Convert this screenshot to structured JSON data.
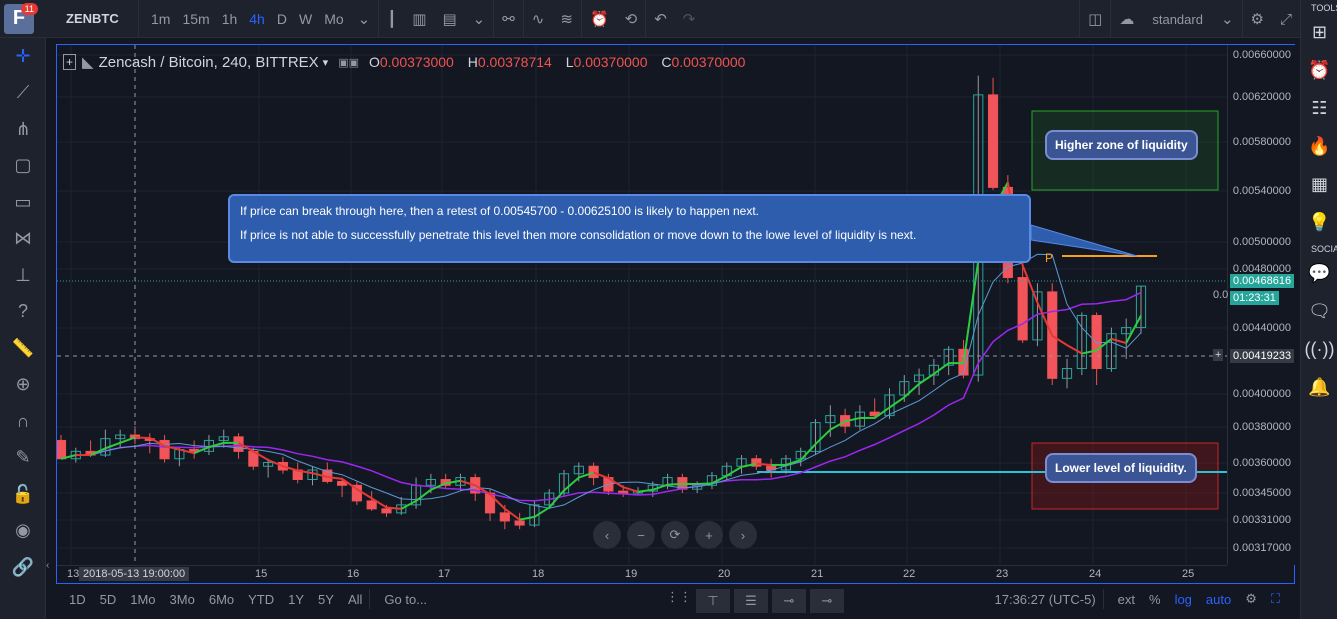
{
  "topbar": {
    "badge": "11",
    "symbol": "ZENBTC",
    "timeframes": [
      "1m",
      "15m",
      "1h",
      "4h",
      "D",
      "W",
      "Mo"
    ],
    "active_timeframe": "4h",
    "layout_label": "standard"
  },
  "legend": {
    "title": "Zencash / Bitcoin, 240, BITTREX",
    "o_label": "O",
    "o": "0.00373000",
    "h_label": "H",
    "h": "0.00378714",
    "l_label": "L",
    "l": "0.00370000",
    "c_label": "C",
    "c": "0.00370000"
  },
  "annotations": {
    "callout_line1": "If price can break through here, then a retest of 0.00545700 - 0.00625100 is likely to happen next.",
    "callout_line2": "If price is not able to successfully penetrate this level then more consolidation or move down to the lowe level of liquidity is next.",
    "higher_zone": "Higher zone of liquidity",
    "lower_zone": "Lower level of liquidity.",
    "p_marker": "P"
  },
  "price_axis": {
    "ticks": [
      "0.00660000",
      "0.00620000",
      "0.00580000",
      "0.00540000",
      "0.00500000",
      "0.00480000",
      "0.00440000",
      "0.00400000",
      "0.00380000",
      "0.00360000",
      "0.00345000",
      "0.00331000",
      "0.00317000"
    ],
    "current_price": "0.00468616",
    "countdown": "01:23:31",
    "crosshair_price": "0.00419233",
    "partial_tick": "0.0"
  },
  "time_axis": {
    "ticks": [
      "13",
      "15",
      "16",
      "17",
      "18",
      "19",
      "20",
      "21",
      "22",
      "23",
      "24",
      "25"
    ],
    "crosshair_time": "2018-05-13 19:00:00"
  },
  "bottombar": {
    "ranges": [
      "1D",
      "5D",
      "1Mo",
      "3Mo",
      "6Mo",
      "YTD",
      "1Y",
      "5Y",
      "All"
    ],
    "goto": "Go to...",
    "clock": "17:36:27 (UTC-5)",
    "ext": "ext",
    "percent": "%",
    "log": "log",
    "auto": "auto"
  },
  "rightpanel": {
    "tools_label": "TOOLS",
    "social_label": "SOCIAL"
  },
  "colors": {
    "up": "#26a69a",
    "down": "#ef5350",
    "accent": "#2962ff",
    "bg": "#131722"
  },
  "chart_data": {
    "type": "candlestick",
    "x": [
      "13",
      "15",
      "16",
      "17",
      "18",
      "19",
      "20",
      "21",
      "22",
      "23",
      "24",
      "25"
    ],
    "ylim": [
      0.0031,
      0.0066
    ],
    "candles": [
      [
        0.00372,
        0.00375,
        0.00362,
        0.00362
      ],
      [
        0.00362,
        0.00368,
        0.0036,
        0.00366
      ],
      [
        0.00366,
        0.00372,
        0.00363,
        0.00364
      ],
      [
        0.00364,
        0.00378,
        0.00363,
        0.00373
      ],
      [
        0.00373,
        0.00378,
        0.00368,
        0.00375
      ],
      [
        0.00375,
        0.0038,
        0.0037,
        0.00373
      ],
      [
        0.00373,
        0.00376,
        0.00365,
        0.00372
      ],
      [
        0.00372,
        0.00375,
        0.0036,
        0.00362
      ],
      [
        0.00362,
        0.00368,
        0.00358,
        0.00367
      ],
      [
        0.00367,
        0.00372,
        0.00362,
        0.00366
      ],
      [
        0.00366,
        0.00375,
        0.00364,
        0.00372
      ],
      [
        0.00372,
        0.00378,
        0.00368,
        0.00374
      ],
      [
        0.00374,
        0.00376,
        0.00362,
        0.00366
      ],
      [
        0.00366,
        0.00368,
        0.00356,
        0.00358
      ],
      [
        0.00358,
        0.00362,
        0.00352,
        0.0036
      ],
      [
        0.0036,
        0.00363,
        0.00354,
        0.00356
      ],
      [
        0.00356,
        0.0036,
        0.00349,
        0.00351
      ],
      [
        0.00351,
        0.00358,
        0.00348,
        0.00356
      ],
      [
        0.00356,
        0.0036,
        0.00349,
        0.0035
      ],
      [
        0.0035,
        0.00352,
        0.00342,
        0.00348
      ],
      [
        0.00348,
        0.0035,
        0.00338,
        0.0034
      ],
      [
        0.0034,
        0.00345,
        0.00335,
        0.00336
      ],
      [
        0.00336,
        0.00338,
        0.00332,
        0.00334
      ],
      [
        0.00334,
        0.00342,
        0.00333,
        0.00338
      ],
      [
        0.00338,
        0.00352,
        0.00336,
        0.00348
      ],
      [
        0.00348,
        0.00354,
        0.00344,
        0.00351
      ],
      [
        0.00351,
        0.00354,
        0.00346,
        0.00348
      ],
      [
        0.00348,
        0.00354,
        0.00345,
        0.00352
      ],
      [
        0.00352,
        0.00354,
        0.0034,
        0.00344
      ],
      [
        0.00344,
        0.00346,
        0.0033,
        0.00334
      ],
      [
        0.00334,
        0.00338,
        0.00326,
        0.0033
      ],
      [
        0.0033,
        0.00334,
        0.00326,
        0.00328
      ],
      [
        0.00328,
        0.0034,
        0.00327,
        0.00338
      ],
      [
        0.00338,
        0.00346,
        0.00336,
        0.00344
      ],
      [
        0.00344,
        0.00356,
        0.00342,
        0.00354
      ],
      [
        0.00354,
        0.0036,
        0.0035,
        0.00358
      ],
      [
        0.00358,
        0.0036,
        0.00348,
        0.00352
      ],
      [
        0.00352,
        0.00354,
        0.00343,
        0.00345
      ],
      [
        0.00345,
        0.00348,
        0.00342,
        0.00344
      ],
      [
        0.00344,
        0.00347,
        0.00343,
        0.00345
      ],
      [
        0.00345,
        0.0035,
        0.00342,
        0.00348
      ],
      [
        0.00348,
        0.00354,
        0.00346,
        0.00352
      ],
      [
        0.00352,
        0.00354,
        0.00344,
        0.00346
      ],
      [
        0.00346,
        0.0035,
        0.00344,
        0.00348
      ],
      [
        0.00348,
        0.00355,
        0.00346,
        0.00353
      ],
      [
        0.00353,
        0.0036,
        0.0035,
        0.00358
      ],
      [
        0.00358,
        0.00364,
        0.00354,
        0.00362
      ],
      [
        0.00362,
        0.00364,
        0.00356,
        0.00358
      ],
      [
        0.00358,
        0.00362,
        0.00352,
        0.00356
      ],
      [
        0.00356,
        0.00364,
        0.00354,
        0.00362
      ],
      [
        0.00362,
        0.00368,
        0.00358,
        0.00366
      ],
      [
        0.00366,
        0.00384,
        0.00364,
        0.00382
      ],
      [
        0.00382,
        0.00392,
        0.00374,
        0.00386
      ],
      [
        0.00386,
        0.0039,
        0.00376,
        0.0038
      ],
      [
        0.0038,
        0.00392,
        0.00378,
        0.00388
      ],
      [
        0.00388,
        0.00396,
        0.00384,
        0.00386
      ],
      [
        0.00386,
        0.00402,
        0.00384,
        0.00398
      ],
      [
        0.00398,
        0.0041,
        0.00394,
        0.00406
      ],
      [
        0.00406,
        0.00414,
        0.00398,
        0.0041
      ],
      [
        0.0041,
        0.0042,
        0.00404,
        0.00416
      ],
      [
        0.00416,
        0.00428,
        0.0041,
        0.00426
      ],
      [
        0.00426,
        0.00432,
        0.00408,
        0.0041
      ],
      [
        0.0041,
        0.0064,
        0.00406,
        0.00622
      ],
      [
        0.00622,
        0.00638,
        0.0054,
        0.00542
      ],
      [
        0.00542,
        0.00552,
        0.0047,
        0.00474
      ],
      [
        0.00474,
        0.00486,
        0.0043,
        0.00432
      ],
      [
        0.00432,
        0.0047,
        0.00428,
        0.00464
      ],
      [
        0.00464,
        0.0047,
        0.00404,
        0.00408
      ],
      [
        0.00408,
        0.0042,
        0.00402,
        0.00414
      ],
      [
        0.00414,
        0.0045,
        0.0041,
        0.00448
      ],
      [
        0.00448,
        0.0045,
        0.00404,
        0.00414
      ],
      [
        0.00414,
        0.0044,
        0.00412,
        0.00436
      ],
      [
        0.00436,
        0.00446,
        0.0042,
        0.0044
      ],
      [
        0.0044,
        0.00468,
        0.00436,
        0.00468
      ]
    ]
  }
}
